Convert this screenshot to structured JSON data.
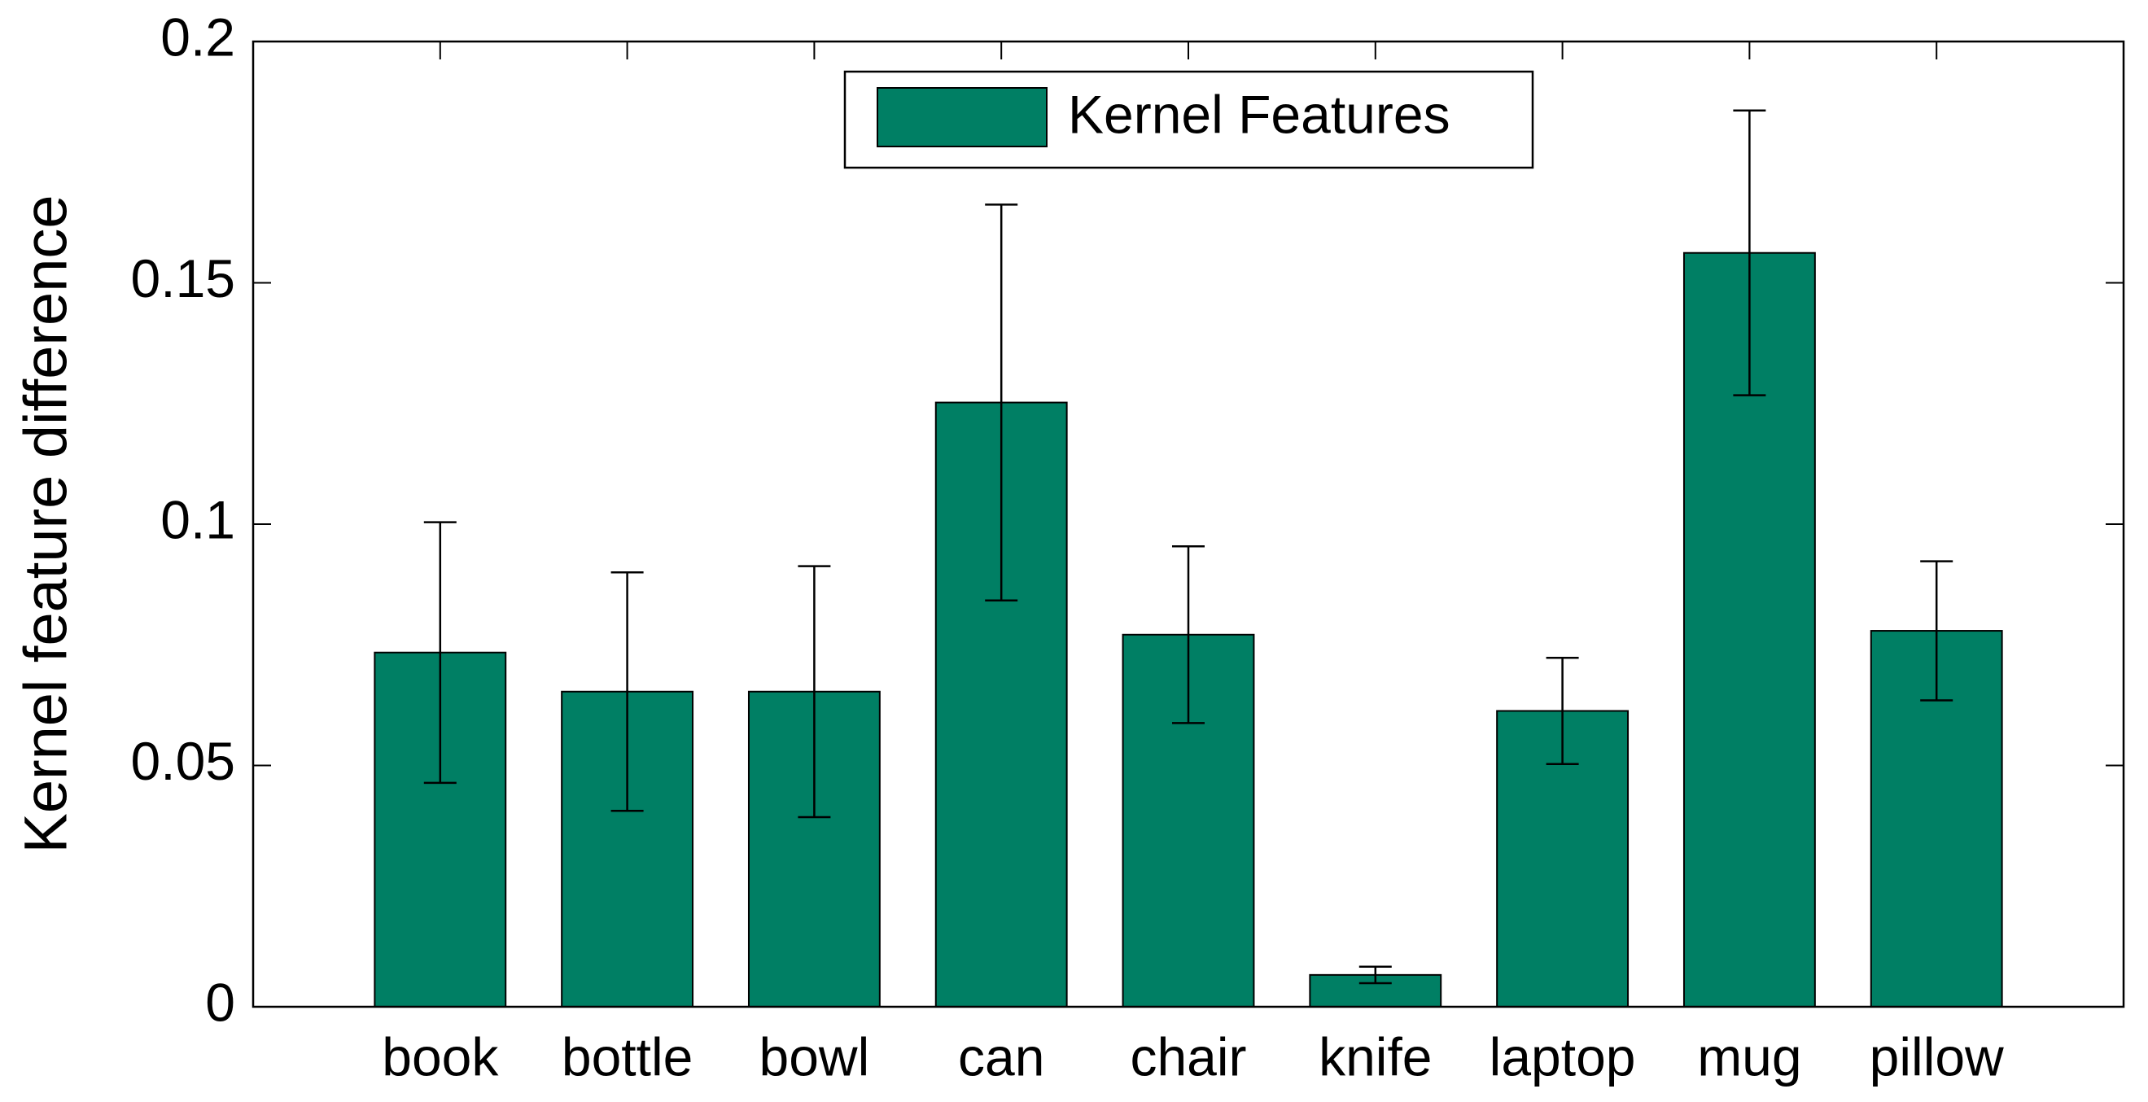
{
  "chart_data": {
    "type": "bar",
    "ylabel": "Kernel feature difference",
    "categories": [
      "book",
      "bottle",
      "bowl",
      "can",
      "chair",
      "knife",
      "laptop",
      "mug",
      "pillow"
    ],
    "series": [
      {
        "name": "Kernel Features",
        "color": "#007f64",
        "values": [
          0.0734,
          0.0653,
          0.0653,
          0.1252,
          0.0771,
          0.0066,
          0.0613,
          0.1562,
          0.0779
        ],
        "errors": [
          0.027,
          0.0247,
          0.026,
          0.041,
          0.0183,
          0.0017,
          0.011,
          0.0295,
          0.0144
        ]
      }
    ],
    "ylim": [
      0,
      0.2
    ],
    "yticks": [
      0,
      0.05,
      0.1,
      0.15,
      0.2
    ],
    "grid": false,
    "legend": "upper center"
  }
}
